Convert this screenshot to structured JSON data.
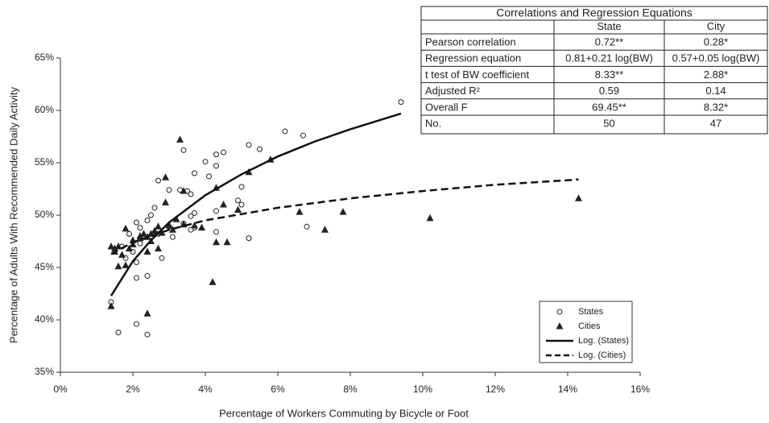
{
  "chart_data": {
    "type": "scatter",
    "xlabel": "Percentage of Workers Commuting by Bicycle or Foot",
    "ylabel": "Percentage of Adults With Recommended Daily Activity",
    "xlim": [
      0,
      16
    ],
    "xticks": [
      {
        "value": 0,
        "label": "0%"
      },
      {
        "value": 2,
        "label": "2%"
      },
      {
        "value": 4,
        "label": "4%"
      },
      {
        "value": 6,
        "label": "6%"
      },
      {
        "value": 8,
        "label": "8%"
      },
      {
        "value": 10,
        "label": "10%"
      },
      {
        "value": 12,
        "label": "12%"
      },
      {
        "value": 14,
        "label": "14%"
      },
      {
        "value": 16,
        "label": "16%"
      }
    ],
    "ylim": [
      35,
      65
    ],
    "yticks": [
      {
        "value": 35,
        "label": "35%"
      },
      {
        "value": 40,
        "label": "40%"
      },
      {
        "value": 45,
        "label": "45%"
      },
      {
        "value": 50,
        "label": "50%"
      },
      {
        "value": 55,
        "label": "55%"
      },
      {
        "value": 60,
        "label": "60%"
      },
      {
        "value": 65,
        "label": "65%"
      }
    ],
    "grid": false,
    "legend": "lower right",
    "series": [
      {
        "name": "States",
        "marker": "circle",
        "color": "#222222",
        "x": [
          9.4,
          6.7,
          6.2,
          5.2,
          5.5,
          4.5,
          4.3,
          4.0,
          4.3,
          3.4,
          3.7,
          4.1,
          5.0,
          3.5,
          3.6,
          3.3,
          2.7,
          3.0,
          4.9,
          5.0,
          4.3,
          3.7,
          2.6,
          2.5,
          3.6,
          2.4,
          2.1,
          3.7,
          3.6,
          6.8,
          3.0,
          2.2,
          1.9,
          2.7,
          4.3,
          3.1,
          2.2,
          5.2,
          1.7,
          2.0,
          2.8,
          1.8,
          2.1,
          2.1,
          2.4,
          1.4,
          2.1,
          1.6,
          2.4,
          3.4
        ],
        "values": [
          60.8,
          57.6,
          58.0,
          56.7,
          56.3,
          56.0,
          55.8,
          55.1,
          54.7,
          56.2,
          54.0,
          53.7,
          52.7,
          52.3,
          52.0,
          52.4,
          53.3,
          52.4,
          51.4,
          51.0,
          50.4,
          50.2,
          50.7,
          50.0,
          49.9,
          49.5,
          49.3,
          48.8,
          48.6,
          48.9,
          48.9,
          48.8,
          48.2,
          48.2,
          48.4,
          47.9,
          47.3,
          47.8,
          47.0,
          46.5,
          45.9,
          45.9,
          45.5,
          44.0,
          44.2,
          41.7,
          39.6,
          38.8,
          38.6,
          49.2
        ]
      },
      {
        "name": "Cities",
        "marker": "triangle",
        "color": "#222222",
        "x": [
          3.3,
          2.9,
          4.3,
          5.8,
          5.2,
          3.4,
          2.9,
          4.5,
          6.6,
          7.8,
          10.2,
          14.3,
          7.3,
          3.0,
          2.7,
          3.4,
          2.5,
          2.3,
          2.4,
          2.2,
          1.8,
          1.4,
          1.6,
          1.5,
          1.6,
          1.8,
          2.4,
          2.7,
          4.3,
          4.6,
          4.2,
          2.4,
          1.4,
          2.0,
          2.6,
          3.1,
          1.9,
          2.2,
          3.7,
          4.9,
          2.8,
          1.7,
          2.5,
          3.2,
          2.0,
          1.5,
          3.9
        ],
        "values": [
          57.2,
          53.6,
          52.6,
          55.3,
          54.1,
          52.3,
          51.2,
          51.0,
          50.3,
          50.3,
          49.7,
          51.6,
          48.6,
          49.0,
          48.9,
          49.1,
          48.2,
          48.2,
          47.9,
          47.8,
          48.7,
          47.0,
          47.0,
          46.5,
          45.1,
          45.2,
          46.5,
          46.8,
          47.4,
          47.4,
          43.6,
          40.6,
          41.3,
          47.2,
          48.5,
          48.6,
          46.8,
          48.0,
          49.0,
          50.5,
          48.3,
          46.2,
          47.5,
          49.6,
          47.6,
          46.8,
          48.8
        ]
      },
      {
        "name": "Log. (States)",
        "type": "line",
        "dash": "solid",
        "color": "#111111",
        "x": [
          1.4,
          2,
          2.5,
          3,
          4,
          5,
          6,
          7,
          8,
          9.4
        ],
        "values": [
          42.3,
          45.6,
          47.6,
          49.3,
          51.9,
          53.9,
          55.6,
          57.0,
          58.2,
          59.7
        ]
      },
      {
        "name": "Log. (Cities)",
        "type": "line",
        "dash": "dashed",
        "color": "#111111",
        "x": [
          1.4,
          2,
          3,
          4,
          6,
          8,
          10,
          12,
          14.3
        ],
        "values": [
          46.3,
          47.4,
          48.6,
          49.5,
          50.7,
          51.6,
          52.3,
          52.9,
          53.4
        ]
      }
    ]
  },
  "table": {
    "title": "Correlations and Regression Equations",
    "columns": [
      "State",
      "City"
    ],
    "rows": [
      [
        "Pearson correlation",
        "0.72**",
        "0.28*"
      ],
      [
        "Regression equation",
        "0.81+0.21 log(BW)",
        "0.57+0.05 log(BW)"
      ],
      [
        "t test of BW coefficient",
        "8.33**",
        "2.88*"
      ],
      [
        "Adjusted R²",
        "0.59",
        "0.14"
      ],
      [
        "Overall F",
        "69.45**",
        "8.32*"
      ],
      [
        "No.",
        "50",
        "47"
      ]
    ]
  }
}
